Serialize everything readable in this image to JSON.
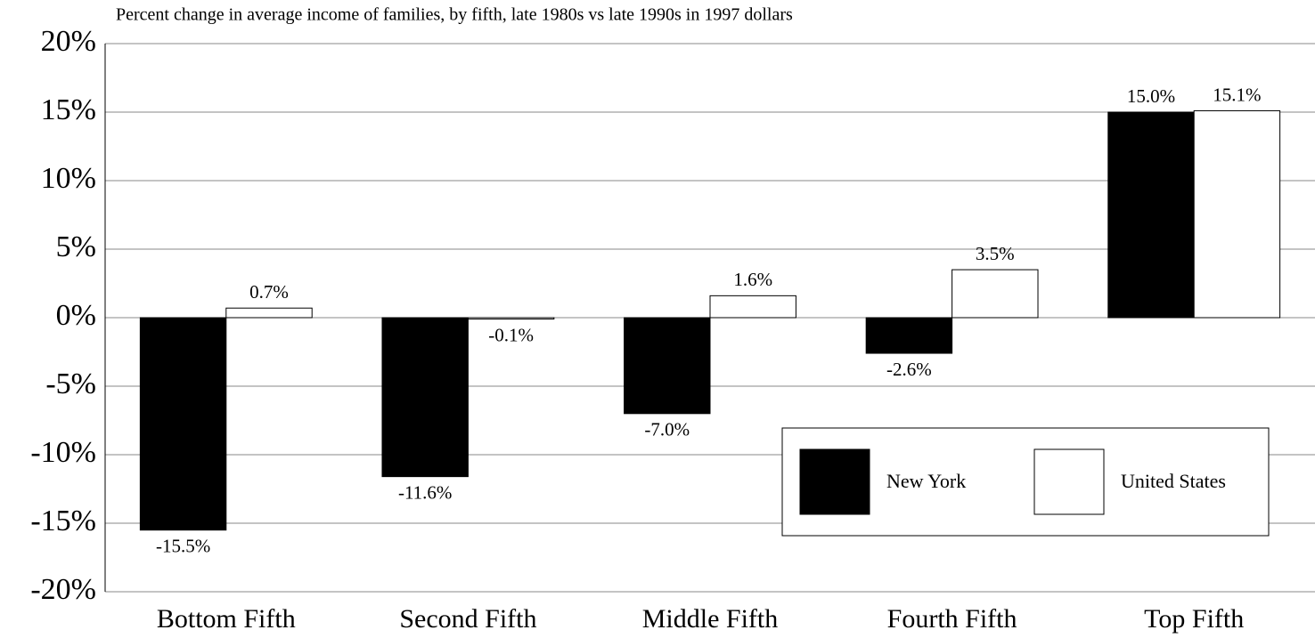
{
  "chart_data": {
    "type": "bar",
    "title": "Percent change in average income of families, by fifth, late 1980s vs late 1990s in 1997 dollars",
    "categories": [
      "Bottom Fifth",
      "Second Fifth",
      "Middle Fifth",
      "Fourth Fifth",
      "Top Fifth"
    ],
    "series": [
      {
        "name": "New York",
        "color": "#000000",
        "values": [
          -15.5,
          -11.6,
          -7.0,
          -2.6,
          15.0
        ],
        "value_labels": [
          "-15.5%",
          "-11.6%",
          "-7.0%",
          "-2.6%",
          "15.0%"
        ]
      },
      {
        "name": "United States",
        "color": "#ffffff",
        "values": [
          0.7,
          -0.1,
          1.6,
          3.5,
          15.1
        ],
        "value_labels": [
          "0.7%",
          "-0.1%",
          "1.6%",
          "3.5%",
          "15.1%"
        ]
      }
    ],
    "edgecolor": "#000000",
    "ylim": [
      -20,
      20
    ],
    "yticks": [
      {
        "value": -20,
        "label": "-20%"
      },
      {
        "value": -15,
        "label": "-15%"
      },
      {
        "value": -10,
        "label": "-10%"
      },
      {
        "value": -5,
        "label": "-5%"
      },
      {
        "value": 0,
        "label": "0%"
      },
      {
        "value": 5,
        "label": "5%"
      },
      {
        "value": 10,
        "label": "10%"
      },
      {
        "value": 15,
        "label": "15%"
      },
      {
        "value": 20,
        "label": "20%"
      }
    ],
    "grid": true,
    "legend": "lower right"
  }
}
